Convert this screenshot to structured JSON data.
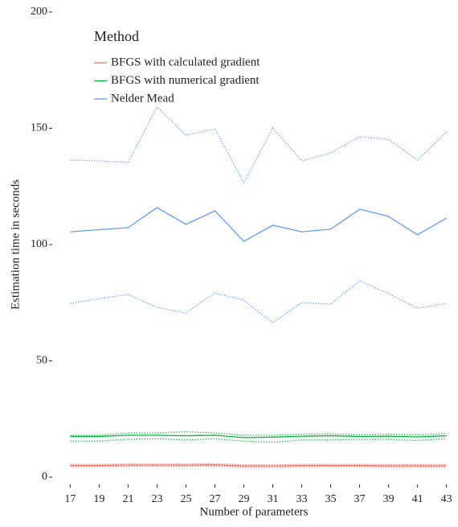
{
  "chart_data": {
    "type": "line",
    "x_label": "Number of parameters",
    "y_label": "Estimation time in seconds",
    "legend_title": "Method",
    "x": [
      17,
      19,
      21,
      23,
      25,
      27,
      29,
      31,
      33,
      35,
      37,
      39,
      41,
      43
    ],
    "xlim": [
      15.7,
      43.8
    ],
    "xticks": [
      17,
      19,
      21,
      23,
      25,
      27,
      29,
      31,
      33,
      35,
      37,
      39,
      41,
      43
    ],
    "ylim": [
      -3,
      205
    ],
    "yticks": [
      0,
      50,
      100,
      150,
      200
    ],
    "series": [
      {
        "name": "BFGS with calculated gradient",
        "color": "#f8766d",
        "values": [
          5,
          5,
          5.2,
          5.2,
          5.2,
          5.3,
          4.8,
          4.8,
          5,
          5,
          5,
          4.9,
          4.9,
          4.9
        ],
        "upper": [
          5.5,
          5.5,
          5.7,
          5.7,
          5.7,
          5.8,
          5.3,
          5.3,
          5.5,
          5.5,
          5.5,
          5.4,
          5.4,
          5.4
        ],
        "lower": [
          4.5,
          4.5,
          4.7,
          4.7,
          4.7,
          4.8,
          4.3,
          4.3,
          4.5,
          4.5,
          4.5,
          4.4,
          4.4,
          4.4
        ]
      },
      {
        "name": "BFGS with numerical gradient",
        "color": "#00ba38",
        "values": [
          17.5,
          17.5,
          18,
          18,
          17.8,
          18,
          17,
          17.2,
          17.6,
          17.8,
          17.5,
          17.6,
          17.3,
          17.8
        ],
        "upper": [
          18,
          18,
          19,
          19,
          19.5,
          19,
          18,
          18,
          18.5,
          18.6,
          18.3,
          18.5,
          18.2,
          18.8
        ],
        "lower": [
          15.5,
          15.5,
          16.3,
          16.5,
          16,
          16.5,
          15.5,
          15,
          16,
          16,
          16.3,
          16.2,
          15.8,
          16.5
        ]
      },
      {
        "name": "Nelder Mead",
        "color": "#619cff",
        "values": [
          105.5,
          106.4,
          107.3,
          115.9,
          108.7,
          114.5,
          101.4,
          108.3,
          105.5,
          106.6,
          115.2,
          112.1,
          104.2,
          111.4
        ],
        "upper": [
          136.3,
          136,
          135.3,
          159.2,
          147,
          149.8,
          126.6,
          150.2,
          136,
          139.4,
          146.4,
          145.3,
          136.3,
          148.4
        ],
        "lower": [
          74.7,
          76.8,
          78.5,
          73,
          70.6,
          79.2,
          76.1,
          66.4,
          75.1,
          74.4,
          84.4,
          78.9,
          72.7,
          74.7
        ]
      }
    ]
  }
}
